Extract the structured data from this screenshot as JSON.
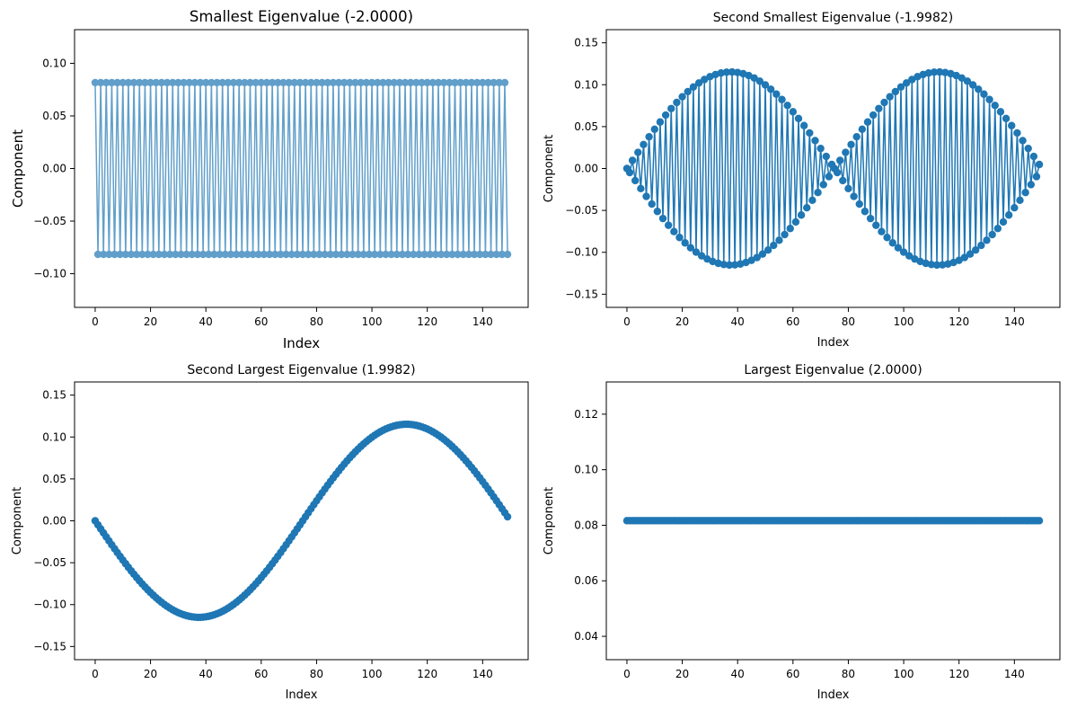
{
  "colors": {
    "series": "#1f77b4",
    "axes": "#000000",
    "background": "#ffffff"
  },
  "chart_data": [
    {
      "type": "line",
      "title": "Smallest Eigenvalue (-2.0000)",
      "xlabel": "Index",
      "ylabel": "Component",
      "xlim": [
        -7.45,
        156.45
      ],
      "ylim": [
        -0.132,
        0.132
      ],
      "xticks": [
        0,
        20,
        40,
        60,
        80,
        100,
        120,
        140
      ],
      "yticks": [
        -0.1,
        -0.05,
        0.0,
        0.05,
        0.1
      ],
      "xtick_labels": [
        "0",
        "20",
        "40",
        "60",
        "80",
        "100",
        "120",
        "140"
      ],
      "ytick_labels": [
        "−0.10",
        "−0.05",
        "0.00",
        "0.05",
        "0.10"
      ],
      "grid": false,
      "markers": true,
      "alpha": 0.7,
      "label_style": "large",
      "series": [
        {
          "n": 150,
          "formula": "alternating",
          "amplitude": 0.08165,
          "x_start": 0,
          "x_end": 149
        }
      ]
    },
    {
      "type": "line",
      "title": "Second Smallest Eigenvalue (-1.9982)",
      "xlabel": "Index",
      "ylabel": "Component",
      "xlim": [
        -7.45,
        156.45
      ],
      "ylim": [
        -0.1657,
        0.1657
      ],
      "xticks": [
        0,
        20,
        40,
        60,
        80,
        100,
        120,
        140
      ],
      "yticks": [
        -0.15,
        -0.1,
        -0.05,
        0.0,
        0.05,
        0.1,
        0.15
      ],
      "xtick_labels": [
        "0",
        "20",
        "40",
        "60",
        "80",
        "100",
        "120",
        "140"
      ],
      "ytick_labels": [
        "−0.15",
        "−0.10",
        "−0.05",
        "0.00",
        "0.05",
        "0.10",
        "0.15"
      ],
      "grid": false,
      "markers": true,
      "alpha": 1.0,
      "label_style": "normal",
      "series": [
        {
          "n": 150,
          "formula": "alternating_sine",
          "amplitude": 0.1152,
          "x_start": 0,
          "x_end": 149
        }
      ]
    },
    {
      "type": "line",
      "title": "Second Largest Eigenvalue (1.9982)",
      "xlabel": "Index",
      "ylabel": "Component",
      "xlim": [
        -7.45,
        156.45
      ],
      "ylim": [
        -0.1657,
        0.1657
      ],
      "xticks": [
        0,
        20,
        40,
        60,
        80,
        100,
        120,
        140
      ],
      "yticks": [
        -0.15,
        -0.1,
        -0.05,
        0.0,
        0.05,
        0.1,
        0.15
      ],
      "xtick_labels": [
        "0",
        "20",
        "40",
        "60",
        "80",
        "100",
        "120",
        "140"
      ],
      "ytick_labels": [
        "−0.15",
        "−0.10",
        "−0.05",
        "0.00",
        "0.05",
        "0.10",
        "0.15"
      ],
      "grid": false,
      "markers": true,
      "alpha": 1.0,
      "label_style": "normal",
      "series": [
        {
          "n": 150,
          "formula": "negative_sine",
          "amplitude": 0.1152,
          "x_start": 0,
          "x_end": 149
        }
      ]
    },
    {
      "type": "line",
      "title": "Largest Eigenvalue (2.0000)",
      "xlabel": "Index",
      "ylabel": "Component",
      "xlim": [
        -7.45,
        156.45
      ],
      "ylim": [
        0.0316,
        0.1316
      ],
      "xticks": [
        0,
        20,
        40,
        60,
        80,
        100,
        120,
        140
      ],
      "yticks": [
        0.04,
        0.06,
        0.08,
        0.1,
        0.12
      ],
      "xtick_labels": [
        "0",
        "20",
        "40",
        "60",
        "80",
        "100",
        "120",
        "140"
      ],
      "ytick_labels": [
        "0.04",
        "0.06",
        "0.08",
        "0.10",
        "0.12"
      ],
      "grid": false,
      "markers": true,
      "alpha": 1.0,
      "label_style": "normal",
      "series": [
        {
          "n": 150,
          "formula": "constant",
          "amplitude": 0.08165,
          "x_start": 0,
          "x_end": 149
        }
      ]
    }
  ]
}
